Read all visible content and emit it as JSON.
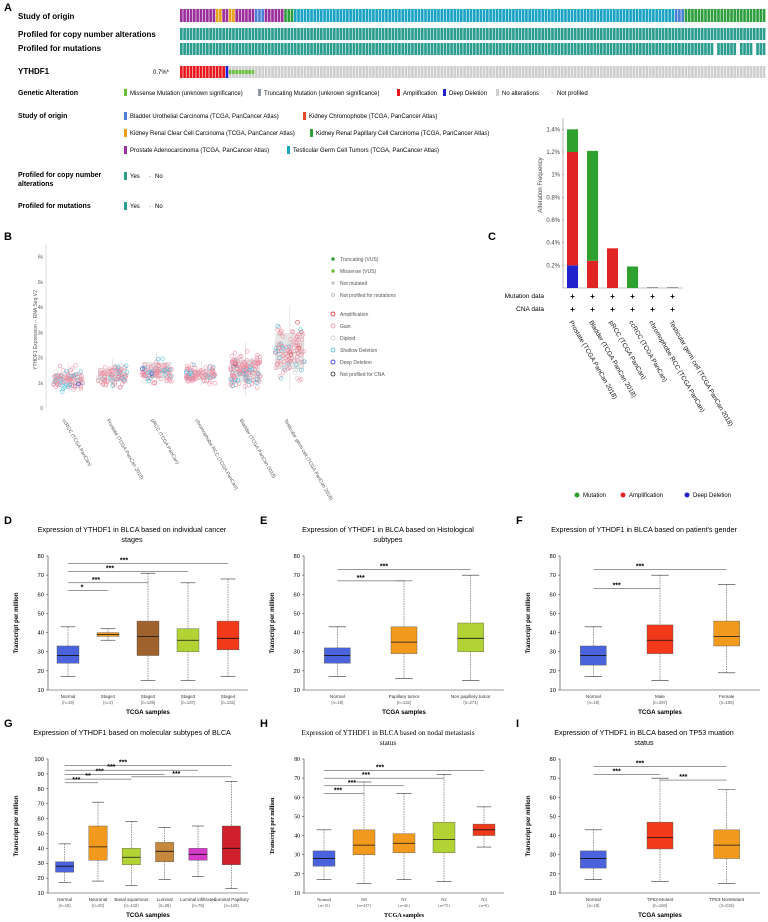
{
  "panels": {
    "A": {
      "letter": "A",
      "rows": [
        "Study of origin",
        "Profiled for copy number alterations",
        "Profiled for mutations",
        "YTHDF1"
      ],
      "ythdf1_pct": "0.7%*",
      "legend": {
        "genetic_title": "Genetic Alteration",
        "genetic_items": [
          "Missense Mutation (unknown significance)",
          "Truncating Mutation (unknown significance)",
          "Amplification",
          "Deep Deletion",
          "No alterations",
          "Not profiled"
        ],
        "study_title": "Study of origin",
        "study_items": [
          "Bladder Urothelial Carcinoma (TCGA, PanCancer Atlas)",
          "Kidney Chromophobe (TCGA, PanCancer Atlas)",
          "Kidney Renal Clear Cell Carcinoma (TCGA, PanCancer Atlas)",
          "Kidney Renal Papillary Cell Carcinoma (TCGA, PanCancer Atlas)",
          "Prostate Adenocarcinoma (TCGA, PanCancer Atlas)",
          "Testicular Germ Cell Tumors (TCGA, PanCancer Atlas)"
        ],
        "cna_title_1": "Profiled for copy number",
        "cna_title_2": "alterations",
        "mut_title": "Profiled for mutations",
        "yes": "Yes",
        "no": "No"
      },
      "colors": {
        "study": [
          "#4a7fd6",
          "#e04a2a",
          "#9b2f9b",
          "#2e9e3e",
          "#1ba3c4"
        ],
        "teal": "#2a9d8f",
        "gray": "#cfcfcf",
        "red": "#e8171e",
        "green": "#6cbf3c",
        "blue": "#1f1fd6"
      }
    },
    "B": {
      "letter": "B",
      "ylabel": "YTHDF1 Expression -- RNA Seq V2",
      "legend": [
        "Truncating (VUS)",
        "Missense (VUS)",
        "Not mutated",
        "Not profiled for mutations",
        "Amplification",
        "Gain",
        "Diploid",
        "Shallow Deletion",
        "Deep Deletion",
        "Not profiled for CNA"
      ]
    },
    "C": {
      "letter": "C",
      "row_labels": [
        "Mutation data",
        "CNA data"
      ],
      "legend": [
        "Mutation",
        "Amplification",
        "Deep Deletion"
      ]
    },
    "D": {
      "letter": "D",
      "title_1": "Expression of YTHDF1 in BLCA based on individual cancer",
      "title_2": "stages",
      "ylabel": "Transcript per million",
      "xlabel": "TCGA samples"
    },
    "E": {
      "letter": "E",
      "title_1": "Expression of YTHDF1 in BLCA based on Histological",
      "title_2": "subtypes",
      "ylabel": "Transcript per million",
      "xlabel": "TCGA samples"
    },
    "F": {
      "letter": "F",
      "title_1": "Expression of YTHDF1 in BLCA based on patient's gender",
      "title_2": "",
      "ylabel": "Transcript per million",
      "xlabel": "TCGA samples"
    },
    "G": {
      "letter": "G",
      "title_1": "Expression of YTHDF1 based on molecular subtypes of BLCA",
      "title_2": "",
      "ylabel": "Transcript per million",
      "xlabel": "TCGA samples"
    },
    "H": {
      "letter": "H",
      "title_1": "Expression of YTHDF1 in BLCA based on nodal metastasis",
      "title_2": "status",
      "ylabel": "Transcript per million",
      "xlabel": "TCGA samples"
    },
    "I": {
      "letter": "I",
      "title_1": "Expression of YTHDF1 in BLCA based on TP53 muation",
      "title_2": "status",
      "ylabel": "Transcript per million",
      "xlabel": "TCGA samples"
    }
  },
  "chart_data": [
    {
      "id": "B",
      "type": "scatter",
      "ylabel": "YTHDF1 Expression -- RNA Seq V2",
      "yticks": [
        "6k",
        "5k",
        "4k",
        "3k",
        "2k",
        "1k",
        "0"
      ],
      "ylim": [
        0,
        6500
      ],
      "categories": [
        "ccRCC (TCGA PanCan)",
        "Prostate (TCGA PanCan 2018)",
        "pRCC (TCGA PanCan)",
        "chromophobe RCC (TCGA PanCan)",
        "Bladder (TCGA PanCan 2018)",
        "Testicular germ cell (TCGA PanCan 2018)"
      ],
      "medians": [
        1150,
        1300,
        1450,
        1350,
        1450,
        2200
      ],
      "q1": [
        950,
        1100,
        1200,
        1150,
        1050,
        1550
      ],
      "q3": [
        1350,
        1550,
        1800,
        1500,
        1900,
        2950
      ],
      "spread": [
        500,
        450,
        500,
        400,
        800,
        1200
      ]
    },
    {
      "id": "C",
      "type": "bar",
      "ylabel": "Alteration Frequency",
      "yticks": [
        "1.4%",
        "1.2%",
        "1%",
        "0.8%",
        "0.6%",
        "0.4%",
        "0.2%"
      ],
      "ylim": [
        0,
        1.5
      ],
      "categories": [
        "Prostate (TCGA PanCan 2018)",
        "Bladder (TCGA PanCan 2018)",
        "pRCC (TCGA PanCan)",
        "ccRCC (TCGA PanCan)",
        "chromophobe RCC (TCGA PanCan)",
        "Testicular germ cell (TCGA PanCan 2018)"
      ],
      "series": [
        {
          "name": "Deep Deletion",
          "color": "#2222cc",
          "values": [
            0.2,
            0,
            0,
            0,
            0,
            0
          ]
        },
        {
          "name": "Amplification",
          "color": "#e02424",
          "values": [
            1.0,
            0.24,
            0.35,
            0,
            0,
            0
          ]
        },
        {
          "name": "Mutation",
          "color": "#2ea02e",
          "values": [
            0.2,
            0.97,
            0,
            0.19,
            0,
            0
          ]
        }
      ]
    },
    {
      "id": "D",
      "type": "boxplot",
      "ylim": [
        10,
        80
      ],
      "yticks": [
        10,
        20,
        30,
        40,
        50,
        60,
        70,
        80
      ],
      "categories": [
        "Normal",
        "Stage1",
        "Stage2",
        "Stage3",
        "Stage4"
      ],
      "ns": [
        "(n=19)",
        "(n=2)",
        "(n=129)",
        "(n=137)",
        "(n=132)"
      ],
      "colors": [
        "#4a63dc",
        "#f29a1e",
        "#a0622d",
        "#b3d334",
        "#f03a1a"
      ],
      "boxes": [
        {
          "min": 17,
          "q1": 24,
          "med": 28,
          "q3": 33,
          "max": 43
        },
        {
          "min": 36,
          "q1": 38,
          "med": 39,
          "q3": 40,
          "max": 42
        },
        {
          "min": 15,
          "q1": 28,
          "med": 38,
          "q3": 46,
          "max": 71
        },
        {
          "min": 15,
          "q1": 30,
          "med": 36,
          "q3": 42,
          "max": 66
        },
        {
          "min": 17,
          "q1": 31,
          "med": 37,
          "q3": 46,
          "max": 68
        }
      ],
      "sig": [
        {
          "from": 0,
          "to": 1,
          "label": "*"
        },
        {
          "from": 0,
          "to": 2,
          "label": "***"
        },
        {
          "from": 0,
          "to": 3,
          "label": "***"
        },
        {
          "from": 0,
          "to": 4,
          "label": "***"
        }
      ]
    },
    {
      "id": "E",
      "type": "boxplot",
      "ylim": [
        10,
        80
      ],
      "yticks": [
        10,
        20,
        30,
        40,
        50,
        60,
        70,
        80
      ],
      "categories": [
        "Normal",
        "Papillary tumor",
        "Non papillary tumor"
      ],
      "ns": [
        "(n=19)",
        "(n=132)",
        "(n=271)"
      ],
      "colors": [
        "#4a63dc",
        "#f29a1e",
        "#b3d334"
      ],
      "boxes": [
        {
          "min": 17,
          "q1": 24,
          "med": 28,
          "q3": 32,
          "max": 43
        },
        {
          "min": 16,
          "q1": 29,
          "med": 35,
          "q3": 43,
          "max": 67
        },
        {
          "min": 15,
          "q1": 30,
          "med": 37,
          "q3": 45,
          "max": 70
        }
      ],
      "sig": [
        {
          "from": 0,
          "to": 1,
          "label": "***"
        },
        {
          "from": 0,
          "to": 2,
          "label": "***"
        }
      ]
    },
    {
      "id": "F",
      "type": "boxplot",
      "ylim": [
        10,
        80
      ],
      "yticks": [
        10,
        20,
        30,
        40,
        50,
        60,
        70,
        80
      ],
      "categories": [
        "Normal",
        "Male",
        "Female"
      ],
      "ns": [
        "(n=19)",
        "(n=297)",
        "(n=105)"
      ],
      "colors": [
        "#4a63dc",
        "#f03a1a",
        "#f29a1e"
      ],
      "boxes": [
        {
          "min": 17,
          "q1": 23,
          "med": 28,
          "q3": 33,
          "max": 43
        },
        {
          "min": 15,
          "q1": 29,
          "med": 36,
          "q3": 44,
          "max": 70
        },
        {
          "min": 19,
          "q1": 33,
          "med": 38,
          "q3": 46,
          "max": 65
        }
      ],
      "sig": [
        {
          "from": 0,
          "to": 1,
          "label": "***"
        },
        {
          "from": 0,
          "to": 2,
          "label": "***"
        }
      ]
    },
    {
      "id": "G",
      "type": "boxplot",
      "ylim": [
        10,
        100
      ],
      "yticks": [
        10,
        20,
        30,
        40,
        50,
        60,
        70,
        80,
        90,
        100
      ],
      "categories": [
        "Normal",
        "Neuronal",
        "Basal squamous",
        "Luminal",
        "Luminal infiltrated",
        "Luminal Papillary"
      ],
      "ns": [
        "(n=19)",
        "(n=20)",
        "(n=142)",
        "(n=26)",
        "(n=78)",
        "(n=142)"
      ],
      "colors": [
        "#4a63dc",
        "#f29a1e",
        "#b3d334",
        "#c5883c",
        "#d63ac8",
        "#d0202e"
      ],
      "boxes": [
        {
          "min": 17,
          "q1": 24,
          "med": 28,
          "q3": 31,
          "max": 43
        },
        {
          "min": 18,
          "q1": 32,
          "med": 41,
          "q3": 55,
          "max": 71
        },
        {
          "min": 15,
          "q1": 29,
          "med": 34,
          "q3": 40,
          "max": 58
        },
        {
          "min": 19,
          "q1": 31,
          "med": 38,
          "q3": 44,
          "max": 54
        },
        {
          "min": 21,
          "q1": 32,
          "med": 36,
          "q3": 40,
          "max": 55
        },
        {
          "min": 13,
          "q1": 29,
          "med": 40,
          "q3": 55,
          "max": 85
        }
      ],
      "sig": [
        {
          "from": 0,
          "to": 1,
          "label": "***"
        },
        {
          "from": 0,
          "to": 2,
          "label": "**"
        },
        {
          "from": 0,
          "to": 3,
          "label": "***"
        },
        {
          "from": 2,
          "to": 5,
          "label": "***"
        },
        {
          "from": 0,
          "to": 4,
          "label": "***"
        },
        {
          "from": 0,
          "to": 5,
          "label": "***"
        }
      ]
    },
    {
      "id": "H",
      "type": "boxplot",
      "ylim": [
        10,
        80
      ],
      "yticks": [
        10,
        20,
        30,
        40,
        50,
        60,
        70,
        80
      ],
      "categories": [
        "Normal",
        "N0",
        "N1",
        "N2",
        "N3"
      ],
      "ns": [
        "(n=19)",
        "(n=237)",
        "(n=46)",
        "(n=75)",
        "(n=8)"
      ],
      "colors": [
        "#4a63dc",
        "#f29a1e",
        "#f29a1e",
        "#b3d334",
        "#f03a1a"
      ],
      "boxes": [
        {
          "min": 17,
          "q1": 24,
          "med": 28,
          "q3": 32,
          "max": 43
        },
        {
          "min": 15,
          "q1": 30,
          "med": 35,
          "q3": 43,
          "max": 68
        },
        {
          "min": 17,
          "q1": 31,
          "med": 36,
          "q3": 41,
          "max": 62
        },
        {
          "min": 16,
          "q1": 31,
          "med": 38,
          "q3": 47,
          "max": 72
        },
        {
          "min": 34,
          "q1": 40,
          "med": 43,
          "q3": 46,
          "max": 55
        }
      ],
      "sig": [
        {
          "from": 0,
          "to": 1,
          "label": "***"
        },
        {
          "from": 0,
          "to": 2,
          "label": "***"
        },
        {
          "from": 0,
          "to": 3,
          "label": "***"
        },
        {
          "from": 0,
          "to": 4,
          "label": "***"
        }
      ]
    },
    {
      "id": "I",
      "type": "boxplot",
      "ylim": [
        10,
        80
      ],
      "yticks": [
        10,
        20,
        30,
        40,
        50,
        60,
        70,
        80
      ],
      "categories": [
        "Normal",
        "TP53-Mutant",
        "TP53-NonMutant"
      ],
      "ns": [
        "(n=19)",
        "(n=194)",
        "(n=216)"
      ],
      "colors": [
        "#4a63dc",
        "#f03a1a",
        "#f29a1e"
      ],
      "boxes": [
        {
          "min": 17,
          "q1": 23,
          "med": 28,
          "q3": 32,
          "max": 43
        },
        {
          "min": 16,
          "q1": 33,
          "med": 39,
          "q3": 47,
          "max": 70
        },
        {
          "min": 15,
          "q1": 28,
          "med": 35,
          "q3": 43,
          "max": 64
        }
      ],
      "sig": [
        {
          "from": 0,
          "to": 1,
          "label": "***"
        },
        {
          "from": 0,
          "to": 2,
          "label": "***"
        },
        {
          "from": 1,
          "to": 2,
          "label": "***"
        }
      ]
    }
  ]
}
